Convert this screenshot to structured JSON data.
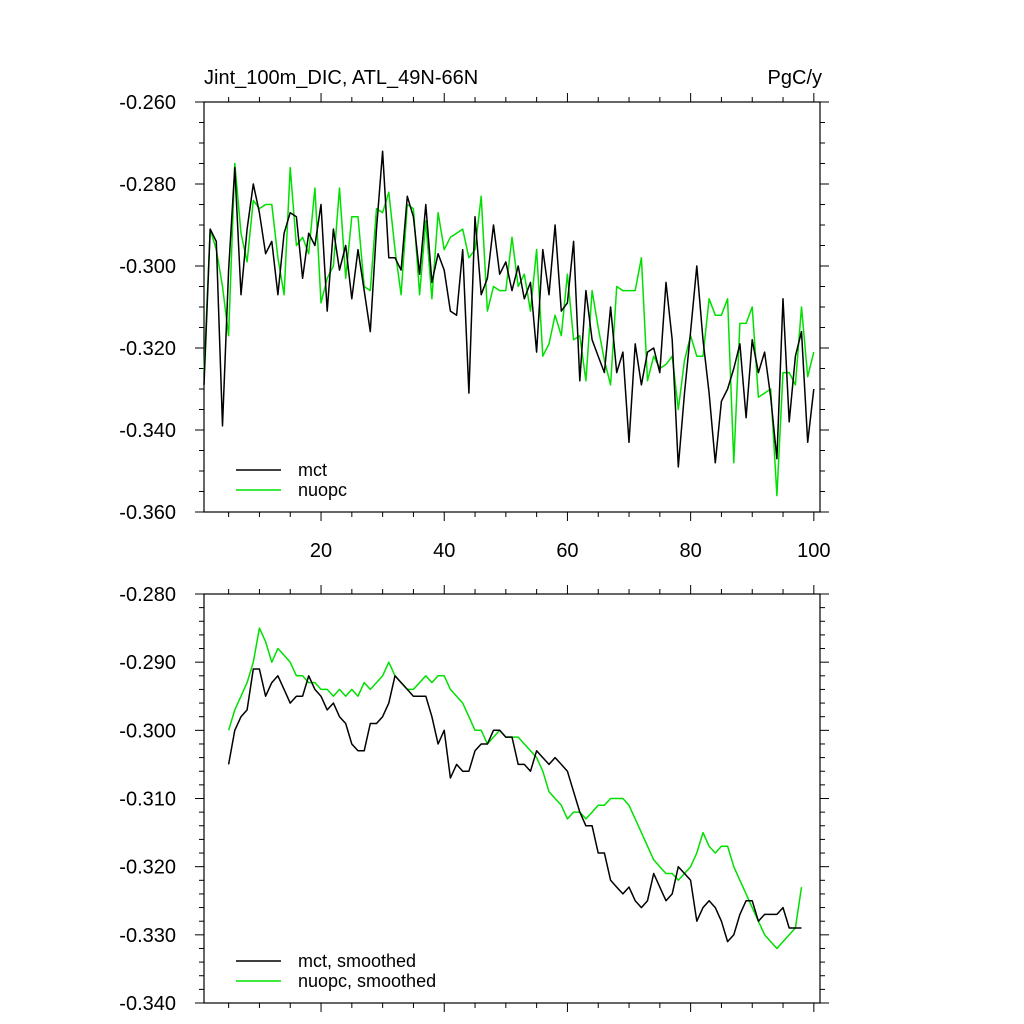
{
  "colors": {
    "mct": "#000000",
    "nuopc": "#00e000"
  },
  "chart_data": [
    {
      "type": "line",
      "title": "Jint_100m_DIC, ATL_49N-66N",
      "unit_label": "PgC/y",
      "xlabel": "",
      "ylabel": "",
      "xlim": [
        1,
        101
      ],
      "ylim": [
        -0.36,
        -0.26
      ],
      "x_ticks": [
        20,
        40,
        60,
        80,
        100
      ],
      "y_ticks": [
        "-0.260",
        "-0.280",
        "-0.300",
        "-0.320",
        "-0.340",
        "-0.360"
      ],
      "legend": {
        "position": "bottom-left",
        "entries": [
          "mct",
          "nuopc"
        ]
      },
      "series": [
        {
          "name": "mct",
          "color": "#000000",
          "x": [
            1,
            2,
            3,
            4,
            5,
            6,
            7,
            8,
            9,
            10,
            11,
            12,
            13,
            14,
            15,
            16,
            17,
            18,
            19,
            20,
            21,
            22,
            23,
            24,
            25,
            26,
            27,
            28,
            29,
            30,
            31,
            32,
            33,
            34,
            35,
            36,
            37,
            38,
            39,
            40,
            41,
            42,
            43,
            44,
            45,
            46,
            47,
            48,
            49,
            50,
            51,
            52,
            53,
            54,
            55,
            56,
            57,
            58,
            59,
            60,
            61,
            62,
            63,
            64,
            65,
            66,
            67,
            68,
            69,
            70,
            71,
            72,
            73,
            74,
            75,
            76,
            77,
            78,
            79,
            80,
            81,
            82,
            83,
            84,
            85,
            86,
            87,
            88,
            89,
            90,
            91,
            92,
            93,
            94,
            95,
            96,
            97,
            98,
            99,
            100
          ],
          "values": [
            -0.329,
            -0.291,
            -0.294,
            -0.339,
            -0.301,
            -0.276,
            -0.307,
            -0.291,
            -0.28,
            -0.287,
            -0.297,
            -0.294,
            -0.307,
            -0.292,
            -0.287,
            -0.288,
            -0.303,
            -0.292,
            -0.295,
            -0.285,
            -0.311,
            -0.291,
            -0.301,
            -0.295,
            -0.308,
            -0.296,
            -0.306,
            -0.316,
            -0.291,
            -0.272,
            -0.298,
            -0.298,
            -0.301,
            -0.283,
            -0.288,
            -0.302,
            -0.285,
            -0.304,
            -0.297,
            -0.301,
            -0.311,
            -0.312,
            -0.296,
            -0.331,
            -0.288,
            -0.307,
            -0.303,
            -0.29,
            -0.302,
            -0.299,
            -0.306,
            -0.3,
            -0.308,
            -0.304,
            -0.321,
            -0.296,
            -0.307,
            -0.29,
            -0.311,
            -0.309,
            -0.294,
            -0.328,
            -0.306,
            -0.318,
            -0.322,
            -0.326,
            -0.31,
            -0.326,
            -0.321,
            -0.343,
            -0.319,
            -0.329,
            -0.321,
            -0.32,
            -0.326,
            -0.304,
            -0.318,
            -0.349,
            -0.331,
            -0.316,
            -0.3,
            -0.318,
            -0.331,
            -0.348,
            -0.333,
            -0.33,
            -0.325,
            -0.319,
            -0.337,
            -0.318,
            -0.326,
            -0.321,
            -0.332,
            -0.347,
            -0.308,
            -0.338,
            -0.322,
            -0.316,
            -0.343,
            -0.33
          ]
        },
        {
          "name": "nuopc",
          "color": "#00e000",
          "x": [
            1,
            2,
            3,
            4,
            5,
            6,
            7,
            8,
            9,
            10,
            11,
            12,
            13,
            14,
            15,
            16,
            17,
            18,
            19,
            20,
            21,
            22,
            23,
            24,
            25,
            26,
            27,
            28,
            29,
            30,
            31,
            32,
            33,
            34,
            35,
            36,
            37,
            38,
            39,
            40,
            41,
            42,
            43,
            44,
            45,
            46,
            47,
            48,
            49,
            50,
            51,
            52,
            53,
            54,
            55,
            56,
            57,
            58,
            59,
            60,
            61,
            62,
            63,
            64,
            65,
            66,
            67,
            68,
            69,
            70,
            71,
            72,
            73,
            74,
            75,
            76,
            77,
            78,
            79,
            80,
            81,
            82,
            83,
            84,
            85,
            86,
            87,
            88,
            89,
            90,
            91,
            92,
            93,
            94,
            95,
            96,
            97,
            98,
            99,
            100
          ],
          "values": [
            -0.326,
            -0.291,
            -0.296,
            -0.305,
            -0.317,
            -0.275,
            -0.292,
            -0.299,
            -0.284,
            -0.286,
            -0.285,
            -0.285,
            -0.298,
            -0.307,
            -0.276,
            -0.295,
            -0.293,
            -0.297,
            -0.281,
            -0.309,
            -0.303,
            -0.3,
            -0.281,
            -0.303,
            -0.288,
            -0.288,
            -0.305,
            -0.306,
            -0.286,
            -0.287,
            -0.282,
            -0.296,
            -0.307,
            -0.285,
            -0.286,
            -0.307,
            -0.289,
            -0.308,
            -0.287,
            -0.296,
            -0.293,
            -0.292,
            -0.291,
            -0.298,
            -0.296,
            -0.283,
            -0.311,
            -0.305,
            -0.306,
            -0.306,
            -0.293,
            -0.305,
            -0.302,
            -0.311,
            -0.296,
            -0.322,
            -0.319,
            -0.312,
            -0.317,
            -0.302,
            -0.318,
            -0.317,
            -0.328,
            -0.306,
            -0.315,
            -0.323,
            -0.329,
            -0.305,
            -0.306,
            -0.306,
            -0.306,
            -0.298,
            -0.328,
            -0.322,
            -0.325,
            -0.324,
            -0.322,
            -0.335,
            -0.323,
            -0.317,
            -0.322,
            -0.322,
            -0.308,
            -0.312,
            -0.312,
            -0.308,
            -0.348,
            -0.314,
            -0.314,
            -0.31,
            -0.332,
            -0.331,
            -0.33,
            -0.356,
            -0.326,
            -0.326,
            -0.329,
            -0.31,
            -0.327,
            -0.321
          ]
        }
      ]
    },
    {
      "type": "line",
      "title": "",
      "xlabel": "",
      "ylabel": "",
      "xlim": [
        1,
        101
      ],
      "ylim": [
        -0.34,
        -0.28
      ],
      "x_ticks": [
        20,
        40,
        60,
        80,
        100
      ],
      "y_ticks": [
        "-0.280",
        "-0.290",
        "-0.300",
        "-0.310",
        "-0.320",
        "-0.330",
        "-0.340"
      ],
      "legend": {
        "position": "bottom-left",
        "entries": [
          "mct, smoothed",
          "nuopc, smoothed"
        ]
      },
      "series": [
        {
          "name": "mct, smoothed",
          "color": "#000000",
          "x": [
            5,
            6,
            7,
            8,
            9,
            10,
            11,
            12,
            13,
            14,
            15,
            16,
            17,
            18,
            19,
            20,
            21,
            22,
            23,
            24,
            25,
            26,
            27,
            28,
            29,
            30,
            31,
            32,
            33,
            34,
            35,
            36,
            37,
            38,
            39,
            40,
            41,
            42,
            43,
            44,
            45,
            46,
            47,
            48,
            49,
            50,
            51,
            52,
            53,
            54,
            55,
            56,
            57,
            58,
            59,
            60,
            61,
            62,
            63,
            64,
            65,
            66,
            67,
            68,
            69,
            70,
            71,
            72,
            73,
            74,
            75,
            76,
            77,
            78,
            79,
            80,
            81,
            82,
            83,
            84,
            85,
            86,
            87,
            88,
            89,
            90,
            91,
            92,
            93,
            94,
            95,
            96,
            97,
            98
          ],
          "values": [
            -0.305,
            -0.3,
            -0.298,
            -0.297,
            -0.291,
            -0.291,
            -0.295,
            -0.293,
            -0.292,
            -0.294,
            -0.296,
            -0.295,
            -0.295,
            -0.292,
            -0.294,
            -0.295,
            -0.297,
            -0.296,
            -0.298,
            -0.299,
            -0.302,
            -0.303,
            -0.303,
            -0.299,
            -0.299,
            -0.298,
            -0.296,
            -0.292,
            -0.293,
            -0.294,
            -0.295,
            -0.295,
            -0.295,
            -0.298,
            -0.302,
            -0.3,
            -0.307,
            -0.305,
            -0.306,
            -0.306,
            -0.303,
            -0.302,
            -0.302,
            -0.3,
            -0.3,
            -0.301,
            -0.301,
            -0.305,
            -0.305,
            -0.306,
            -0.303,
            -0.304,
            -0.305,
            -0.304,
            -0.305,
            -0.306,
            -0.309,
            -0.312,
            -0.314,
            -0.314,
            -0.318,
            -0.318,
            -0.322,
            -0.323,
            -0.324,
            -0.323,
            -0.325,
            -0.326,
            -0.325,
            -0.321,
            -0.323,
            -0.325,
            -0.324,
            -0.32,
            -0.321,
            -0.322,
            -0.328,
            -0.326,
            -0.325,
            -0.326,
            -0.328,
            -0.331,
            -0.33,
            -0.327,
            -0.325,
            -0.325,
            -0.328,
            -0.327,
            -0.327,
            -0.327,
            -0.326,
            -0.329,
            -0.329,
            -0.329
          ]
        },
        {
          "name": "nuopc, smoothed",
          "color": "#00e000",
          "x": [
            5,
            6,
            7,
            8,
            9,
            10,
            11,
            12,
            13,
            14,
            15,
            16,
            17,
            18,
            19,
            20,
            21,
            22,
            23,
            24,
            25,
            26,
            27,
            28,
            29,
            30,
            31,
            32,
            33,
            34,
            35,
            36,
            37,
            38,
            39,
            40,
            41,
            42,
            43,
            44,
            45,
            46,
            47,
            48,
            49,
            50,
            51,
            52,
            53,
            54,
            55,
            56,
            57,
            58,
            59,
            60,
            61,
            62,
            63,
            64,
            65,
            66,
            67,
            68,
            69,
            70,
            71,
            72,
            73,
            74,
            75,
            76,
            77,
            78,
            79,
            80,
            81,
            82,
            83,
            84,
            85,
            86,
            87,
            88,
            89,
            90,
            91,
            92,
            93,
            94,
            95,
            96,
            97,
            98
          ],
          "values": [
            -0.3,
            -0.297,
            -0.295,
            -0.293,
            -0.29,
            -0.285,
            -0.287,
            -0.29,
            -0.288,
            -0.289,
            -0.29,
            -0.292,
            -0.292,
            -0.293,
            -0.293,
            -0.294,
            -0.294,
            -0.295,
            -0.294,
            -0.295,
            -0.294,
            -0.295,
            -0.293,
            -0.294,
            -0.293,
            -0.292,
            -0.29,
            -0.292,
            -0.293,
            -0.294,
            -0.294,
            -0.293,
            -0.292,
            -0.293,
            -0.292,
            -0.292,
            -0.294,
            -0.295,
            -0.296,
            -0.298,
            -0.3,
            -0.3,
            -0.302,
            -0.301,
            -0.3,
            -0.301,
            -0.301,
            -0.301,
            -0.302,
            -0.303,
            -0.304,
            -0.306,
            -0.309,
            -0.31,
            -0.311,
            -0.313,
            -0.312,
            -0.312,
            -0.313,
            -0.312,
            -0.311,
            -0.311,
            -0.31,
            -0.31,
            -0.31,
            -0.311,
            -0.313,
            -0.315,
            -0.317,
            -0.319,
            -0.32,
            -0.321,
            -0.321,
            -0.322,
            -0.321,
            -0.32,
            -0.318,
            -0.315,
            -0.317,
            -0.318,
            -0.317,
            -0.317,
            -0.32,
            -0.322,
            -0.324,
            -0.326,
            -0.328,
            -0.33,
            -0.331,
            -0.332,
            -0.331,
            -0.33,
            -0.329,
            -0.323
          ]
        }
      ]
    }
  ]
}
